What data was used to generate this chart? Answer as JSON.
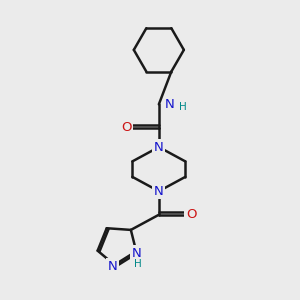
{
  "background_color": "#ebebeb",
  "bond_color": "#1a1a1a",
  "atom_color_N": "#1414cc",
  "atom_color_O": "#cc1414",
  "atom_color_H": "#008888",
  "bond_width": 1.8,
  "figsize": [
    3.0,
    3.0
  ],
  "dpi": 100,
  "xlim": [
    0,
    10
  ],
  "ylim": [
    0,
    10
  ]
}
